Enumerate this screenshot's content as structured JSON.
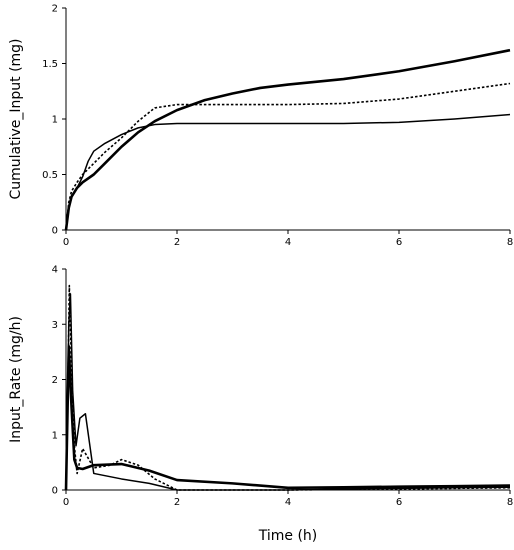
{
  "chart_data": [
    {
      "type": "line",
      "title": "",
      "xlabel": "",
      "ylabel": "Cumulative_Input (mg)",
      "xlim": [
        0,
        8
      ],
      "ylim": [
        0,
        2
      ],
      "xticks": [
        "0",
        "2",
        "4",
        "6",
        "8"
      ],
      "yticks": [
        "0",
        "0.5",
        "1",
        "1.5",
        "2"
      ],
      "grid": false,
      "legend": "none",
      "series": [
        {
          "style": "thick-solid",
          "x": [
            0,
            0.05,
            0.1,
            0.2,
            0.3,
            0.5,
            0.7,
            1.0,
            1.3,
            1.6,
            2.0,
            2.5,
            3.0,
            3.5,
            4.0,
            5.0,
            6.0,
            7.0,
            8.0
          ],
          "y": [
            0,
            0.2,
            0.3,
            0.38,
            0.43,
            0.5,
            0.6,
            0.75,
            0.88,
            0.98,
            1.08,
            1.17,
            1.23,
            1.28,
            1.31,
            1.36,
            1.43,
            1.52,
            1.62
          ]
        },
        {
          "style": "thin-solid",
          "x": [
            0,
            0.05,
            0.1,
            0.2,
            0.3,
            0.4,
            0.5,
            0.7,
            1.0,
            1.3,
            1.6,
            2.0,
            3.0,
            4.0,
            5.0,
            6.0,
            7.0,
            8.0
          ],
          "y": [
            0,
            0.2,
            0.3,
            0.38,
            0.48,
            0.62,
            0.71,
            0.78,
            0.86,
            0.92,
            0.95,
            0.96,
            0.96,
            0.96,
            0.96,
            0.97,
            1.0,
            1.04
          ]
        },
        {
          "style": "dotted",
          "x": [
            0,
            0.05,
            0.1,
            0.2,
            0.3,
            0.5,
            0.7,
            1.0,
            1.3,
            1.6,
            2.0,
            3.0,
            4.0,
            5.0,
            6.0,
            7.0,
            8.0
          ],
          "y": [
            0,
            0.25,
            0.35,
            0.43,
            0.5,
            0.6,
            0.7,
            0.83,
            0.98,
            1.1,
            1.13,
            1.13,
            1.13,
            1.14,
            1.18,
            1.25,
            1.32
          ]
        }
      ]
    },
    {
      "type": "line",
      "title": "",
      "xlabel": "Time (h)",
      "ylabel": "Input_Rate (mg/h)",
      "xlim": [
        0,
        8
      ],
      "ylim": [
        0,
        4
      ],
      "xticks": [
        "0",
        "2",
        "4",
        "6",
        "8"
      ],
      "yticks": [
        "0",
        "1",
        "2",
        "3",
        "4"
      ],
      "grid": false,
      "legend": "none",
      "series": [
        {
          "style": "thick-solid",
          "x": [
            0,
            0.05,
            0.1,
            0.15,
            0.2,
            0.3,
            0.5,
            1.0,
            1.5,
            2.0,
            3.0,
            4.0,
            5.0,
            6.0,
            7.0,
            8.0
          ],
          "y": [
            0,
            2.6,
            1.5,
            0.55,
            0.4,
            0.38,
            0.45,
            0.47,
            0.35,
            0.18,
            0.12,
            0.04,
            0.05,
            0.06,
            0.07,
            0.08
          ]
        },
        {
          "style": "thin-solid",
          "x": [
            0,
            0.02,
            0.05,
            0.08,
            0.12,
            0.18,
            0.25,
            0.35,
            0.5,
            1.0,
            1.5,
            2.0,
            3.0,
            4.0,
            5.0,
            6.0,
            7.0,
            8.0
          ],
          "y": [
            0,
            1.2,
            3.0,
            3.55,
            1.8,
            0.8,
            1.3,
            1.38,
            0.3,
            0.2,
            0.12,
            0.0,
            0.0,
            0.0,
            0.02,
            0.03,
            0.04,
            0.05
          ]
        },
        {
          "style": "dotted",
          "x": [
            0,
            0.03,
            0.06,
            0.1,
            0.15,
            0.2,
            0.3,
            0.5,
            0.8,
            1.0,
            1.3,
            1.6,
            2.0,
            3.0,
            4.0,
            5.0,
            6.0,
            7.0,
            8.0
          ],
          "y": [
            0,
            1.5,
            3.7,
            2.2,
            0.8,
            0.3,
            0.75,
            0.4,
            0.45,
            0.55,
            0.45,
            0.2,
            0.0,
            0.0,
            0.0,
            0.01,
            0.02,
            0.03,
            0.04
          ]
        }
      ]
    }
  ]
}
